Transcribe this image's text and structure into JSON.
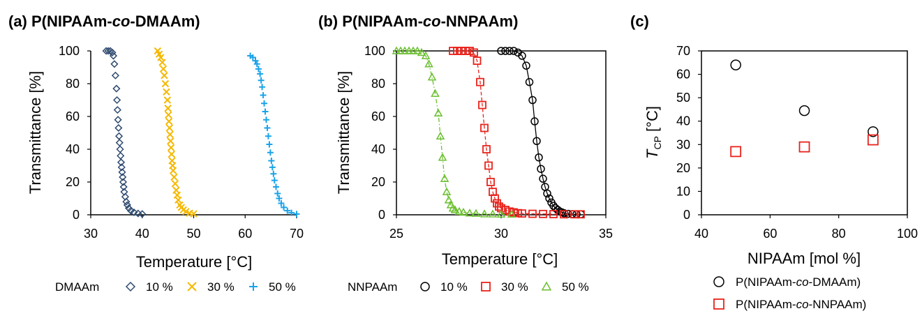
{
  "chart_data": [
    {
      "type": "scatter",
      "title_prefix": "(a) P(NIPAAm-",
      "title_italic": "co",
      "title_suffix": "-DMAAm)",
      "xlabel": "Temperature [°C]",
      "ylabel": "Transmittance [%]",
      "xlim": [
        30,
        70
      ],
      "ylim": [
        0,
        100
      ],
      "xticks": [
        "30",
        "40",
        "50",
        "60",
        "70"
      ],
      "yticks": [
        "0",
        "20",
        "40",
        "60",
        "80",
        "100"
      ],
      "legend_title": "DMAAm",
      "series": [
        {
          "name": "10 %",
          "marker": "diamond",
          "color": "#2e4a6e",
          "x": [
            33.0,
            33.4,
            33.8,
            34.2,
            34.4,
            34.6,
            34.8,
            35.0,
            35.1,
            35.2,
            35.3,
            35.4,
            35.5,
            35.6,
            35.7,
            35.8,
            35.9,
            36.0,
            36.1,
            36.2,
            36.3,
            36.4,
            36.5,
            36.7,
            36.9,
            37.1,
            37.4,
            37.8,
            38.4,
            39.2,
            40.0
          ],
          "y": [
            100,
            100,
            100,
            99,
            97,
            92,
            85,
            77,
            70,
            64,
            58,
            53,
            48,
            44,
            40,
            36,
            32,
            29,
            26,
            23,
            20,
            17,
            14,
            11,
            8,
            6,
            4,
            2.5,
            1.5,
            0.8,
            0.5
          ]
        },
        {
          "name": "30 %",
          "marker": "x",
          "color": "#f5b800",
          "x": [
            43.0,
            43.3,
            43.6,
            43.9,
            44.1,
            44.3,
            44.5,
            44.7,
            44.9,
            45.0,
            45.1,
            45.2,
            45.3,
            45.4,
            45.5,
            45.6,
            45.7,
            45.8,
            45.9,
            46.0,
            46.2,
            46.4,
            46.6,
            46.8,
            47.0,
            47.3,
            47.6,
            48.0,
            48.5,
            49.2,
            50.0
          ],
          "y": [
            100,
            98,
            96,
            93,
            89,
            85,
            80,
            75,
            70,
            65,
            61,
            57,
            53,
            49,
            45,
            41,
            37,
            33,
            30,
            27,
            23,
            19,
            15,
            12,
            9,
            6,
            4.5,
            3,
            2,
            1,
            0.6
          ]
        },
        {
          "name": "50 %",
          "marker": "plus",
          "color": "#1aa3e8",
          "x": [
            61.0,
            61.5,
            62.0,
            62.3,
            62.6,
            62.9,
            63.1,
            63.3,
            63.5,
            63.7,
            63.9,
            64.1,
            64.3,
            64.5,
            64.7,
            64.9,
            65.1,
            65.3,
            65.5,
            65.7,
            66.0,
            66.3,
            66.6,
            67.0,
            67.5,
            68.2,
            69.0,
            70.0
          ],
          "y": [
            97,
            96,
            94,
            92,
            89,
            86,
            82,
            78,
            73,
            68,
            63,
            58,
            53,
            48,
            43,
            38,
            33,
            29,
            25,
            21,
            17,
            13,
            10,
            7,
            4.5,
            2.5,
            1.2,
            0.5
          ]
        }
      ]
    },
    {
      "type": "line",
      "title_prefix": "(b) P(NIPAAm-",
      "title_italic": "co",
      "title_suffix": "-NNPAAm)",
      "xlabel": "Temperature [°C]",
      "ylabel": "Transmittance [%]",
      "xlim": [
        25,
        35
      ],
      "ylim": [
        0,
        100
      ],
      "xticks": [
        "25",
        "30",
        "35"
      ],
      "yticks": [
        "0",
        "20",
        "40",
        "60",
        "80",
        "100"
      ],
      "legend_title": "NNPAAm",
      "series": [
        {
          "name": "10 %",
          "marker": "circle",
          "color": "#000000",
          "x": [
            30.0,
            30.2,
            30.4,
            30.6,
            30.8,
            31.0,
            31.2,
            31.35,
            31.5,
            31.6,
            31.7,
            31.8,
            31.9,
            32.0,
            32.1,
            32.2,
            32.3,
            32.4,
            32.5,
            32.6,
            32.7,
            32.8,
            32.9,
            33.0,
            33.2,
            33.4,
            33.6,
            33.8
          ],
          "y": [
            100,
            100,
            100,
            100,
            99,
            97,
            91,
            81,
            70,
            57,
            45,
            35,
            28,
            22,
            17,
            13,
            10,
            7.5,
            5.5,
            4,
            3,
            2,
            1.5,
            1,
            0.6,
            0.4,
            0.3,
            0.3
          ]
        },
        {
          "name": "30 %",
          "marker": "square",
          "color": "#e8221b",
          "x": [
            27.7,
            27.9,
            28.1,
            28.3,
            28.5,
            28.7,
            28.85,
            29.0,
            29.1,
            29.2,
            29.3,
            29.4,
            29.5,
            29.6,
            29.7,
            29.8,
            29.9,
            30.0,
            30.2,
            30.4,
            30.6,
            30.8,
            31.0,
            31.5,
            32.0,
            32.5,
            33.0,
            33.5,
            33.8
          ],
          "y": [
            100,
            100,
            100,
            100,
            100,
            99,
            94,
            81,
            67,
            53,
            40,
            30,
            20,
            14,
            10,
            7,
            5,
            4,
            3,
            2,
            1.5,
            1,
            0.8,
            0.6,
            0.5,
            0.4,
            0.3,
            0.3,
            0.3
          ]
        },
        {
          "name": "50 %",
          "marker": "triangle",
          "color": "#6abf2e",
          "x": [
            25.0,
            25.2,
            25.4,
            25.6,
            25.8,
            26.0,
            26.2,
            26.4,
            26.55,
            26.7,
            26.85,
            27.0,
            27.1,
            27.2,
            27.3,
            27.4,
            27.5,
            27.6,
            27.7,
            27.8,
            28.0,
            28.2,
            28.5,
            28.8,
            29.2,
            29.6,
            30.0,
            30.5
          ],
          "y": [
            100,
            100,
            100,
            100,
            100,
            100,
            99,
            97,
            92,
            84,
            74,
            62,
            48,
            35,
            22,
            14,
            9,
            6,
            4,
            3,
            2,
            1.5,
            1,
            0.8,
            0.5,
            0.4,
            0.3,
            0.3
          ]
        }
      ]
    },
    {
      "type": "scatter",
      "title_prefix": "(c)",
      "xlabel": "NIPAAm [mol %]",
      "ylabel_main": "T",
      "ylabel_sub": "CP",
      "ylabel_unit": " [°C]",
      "xlim": [
        40,
        100
      ],
      "ylim": [
        0,
        70
      ],
      "xticks": [
        "40",
        "60",
        "80",
        "100"
      ],
      "yticks": [
        "0",
        "10",
        "20",
        "30",
        "40",
        "50",
        "60",
        "70"
      ],
      "series": [
        {
          "name_prefix": "P(NIPAAm-",
          "name_italic": "co",
          "name_suffix": "-DMAAm)",
          "marker": "circle",
          "color": "#000000",
          "x": [
            50,
            70,
            90
          ],
          "y": [
            64,
            44.5,
            35.5
          ]
        },
        {
          "name_prefix": "P(NIPAAm-",
          "name_italic": "co",
          "name_suffix": "-NNPAAm)",
          "marker": "square",
          "color": "#e8221b",
          "x": [
            50,
            70,
            90
          ],
          "y": [
            27,
            29,
            32
          ]
        }
      ]
    }
  ]
}
